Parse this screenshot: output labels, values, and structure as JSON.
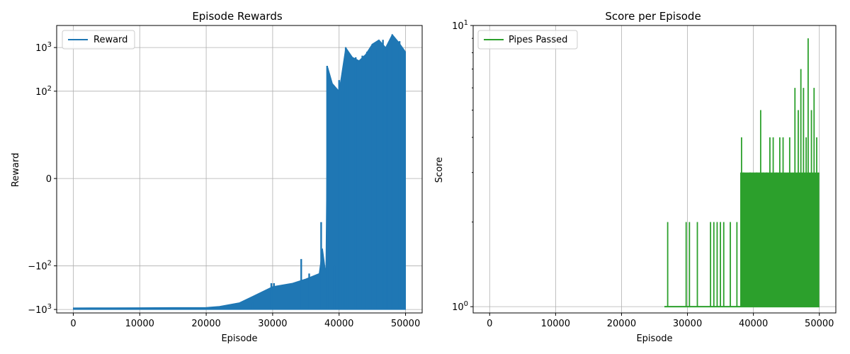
{
  "chart_data": [
    {
      "type": "line",
      "title": "Episode Rewards",
      "xlabel": "Episode",
      "ylabel": "Reward",
      "yscale": "symlog",
      "xlim": [
        -2500,
        52500
      ],
      "ylim": [
        -1200,
        3200
      ],
      "grid": true,
      "legend_position": "top-left",
      "x_ticks": [
        0,
        10000,
        20000,
        30000,
        40000,
        50000
      ],
      "x_tick_labels": [
        "0",
        "10000",
        "20000",
        "30000",
        "40000",
        "50000"
      ],
      "y_tick_labels": [
        "10^3",
        "10^2",
        "0",
        "−10^2",
        "−10^3"
      ],
      "series": [
        {
          "name": "Reward",
          "color": "#1f77b4",
          "envelope": {
            "x": [
              0,
              5000,
              10000,
              15000,
              20000,
              22000,
              25000,
              27000,
              30000,
              33000,
              35000,
              37000,
              37500,
              38000,
              38300,
              39000,
              40000,
              41000,
              42000,
              43000,
              44000,
              45000,
              46000,
              47000,
              48000,
              49000,
              50000
            ],
            "upper": [
              -920,
              -915,
              -910,
              -905,
              -900,
              -850,
              -700,
              -500,
              -300,
              -250,
              -200,
              -150,
              -40,
              -150,
              350,
              150,
              100,
              1000,
              600,
              500,
              700,
              1200,
              1500,
              1000,
              2000,
              1300,
              800
            ],
            "lower": [
              -1000,
              -1000,
              -1000,
              -1000,
              -1000,
              -1000,
              -1000,
              -1000,
              -1000,
              -1000,
              -1000,
              -1000,
              -1000,
              -1000,
              -1000,
              -1000,
              -1000,
              -1000,
              -1000,
              -1000,
              -1000,
              -1000,
              -1000,
              -1000,
              -1000,
              -1000,
              -1000
            ]
          },
          "peaks": [
            {
              "x": 27000,
              "y": -700
            },
            {
              "x": 29800,
              "y": -250
            },
            {
              "x": 30200,
              "y": -250
            },
            {
              "x": 34300,
              "y": -70
            },
            {
              "x": 35500,
              "y": -150
            },
            {
              "x": 37300,
              "y": -10
            },
            {
              "x": 38200,
              "y": 380
            },
            {
              "x": 38600,
              "y": 180
            },
            {
              "x": 39300,
              "y": -100
            },
            {
              "x": 40000,
              "y": 180
            },
            {
              "x": 40500,
              "y": 100
            },
            {
              "x": 41000,
              "y": 1000
            },
            {
              "x": 41500,
              "y": 300
            },
            {
              "x": 42500,
              "y": 600
            },
            {
              "x": 43500,
              "y": 650
            },
            {
              "x": 44200,
              "y": 800
            },
            {
              "x": 45000,
              "y": 1200
            },
            {
              "x": 45500,
              "y": 900
            },
            {
              "x": 46600,
              "y": 1500
            },
            {
              "x": 47200,
              "y": 1000
            },
            {
              "x": 48000,
              "y": 2000
            },
            {
              "x": 49100,
              "y": 1400
            },
            {
              "x": 49600,
              "y": 800
            }
          ]
        }
      ]
    },
    {
      "type": "line",
      "title": "Score per Episode",
      "xlabel": "Episode",
      "ylabel": "Score",
      "yscale": "log",
      "xlim": [
        -2500,
        52500
      ],
      "ylim": [
        0.95,
        10
      ],
      "grid": true,
      "legend_position": "top-left",
      "x_ticks": [
        0,
        10000,
        20000,
        30000,
        40000,
        50000
      ],
      "x_tick_labels": [
        "0",
        "10000",
        "20000",
        "30000",
        "40000",
        "50000"
      ],
      "y_ticks": [
        1,
        10
      ],
      "y_tick_labels": [
        "10^0",
        "10^1"
      ],
      "series": [
        {
          "name": "Pipes Passed",
          "color": "#2ca02c",
          "baseline": 1,
          "dense_from": 38000,
          "dense_level": 3,
          "spikes": [
            {
              "x": 20800,
              "y": 1
            },
            {
              "x": 22500,
              "y": 1
            },
            {
              "x": 23000,
              "y": 1
            },
            {
              "x": 24500,
              "y": 1
            },
            {
              "x": 25500,
              "y": 1
            },
            {
              "x": 27000,
              "y": 2
            },
            {
              "x": 29800,
              "y": 2
            },
            {
              "x": 30300,
              "y": 2
            },
            {
              "x": 31500,
              "y": 2
            },
            {
              "x": 33500,
              "y": 2
            },
            {
              "x": 34000,
              "y": 2
            },
            {
              "x": 34500,
              "y": 2
            },
            {
              "x": 35000,
              "y": 2
            },
            {
              "x": 35500,
              "y": 2
            },
            {
              "x": 36500,
              "y": 2
            },
            {
              "x": 37500,
              "y": 2
            },
            {
              "x": 38200,
              "y": 4
            },
            {
              "x": 38500,
              "y": 3
            },
            {
              "x": 39500,
              "y": 3
            },
            {
              "x": 40500,
              "y": 3
            },
            {
              "x": 41100,
              "y": 5
            },
            {
              "x": 41500,
              "y": 3
            },
            {
              "x": 42000,
              "y": 3
            },
            {
              "x": 42500,
              "y": 4
            },
            {
              "x": 43000,
              "y": 4
            },
            {
              "x": 43500,
              "y": 3
            },
            {
              "x": 44000,
              "y": 4
            },
            {
              "x": 44500,
              "y": 4
            },
            {
              "x": 45500,
              "y": 4
            },
            {
              "x": 46300,
              "y": 6
            },
            {
              "x": 46800,
              "y": 5
            },
            {
              "x": 47200,
              "y": 7
            },
            {
              "x": 47600,
              "y": 6
            },
            {
              "x": 48000,
              "y": 4
            },
            {
              "x": 48300,
              "y": 9
            },
            {
              "x": 48800,
              "y": 5
            },
            {
              "x": 49200,
              "y": 6
            },
            {
              "x": 49600,
              "y": 4
            }
          ]
        }
      ]
    }
  ]
}
